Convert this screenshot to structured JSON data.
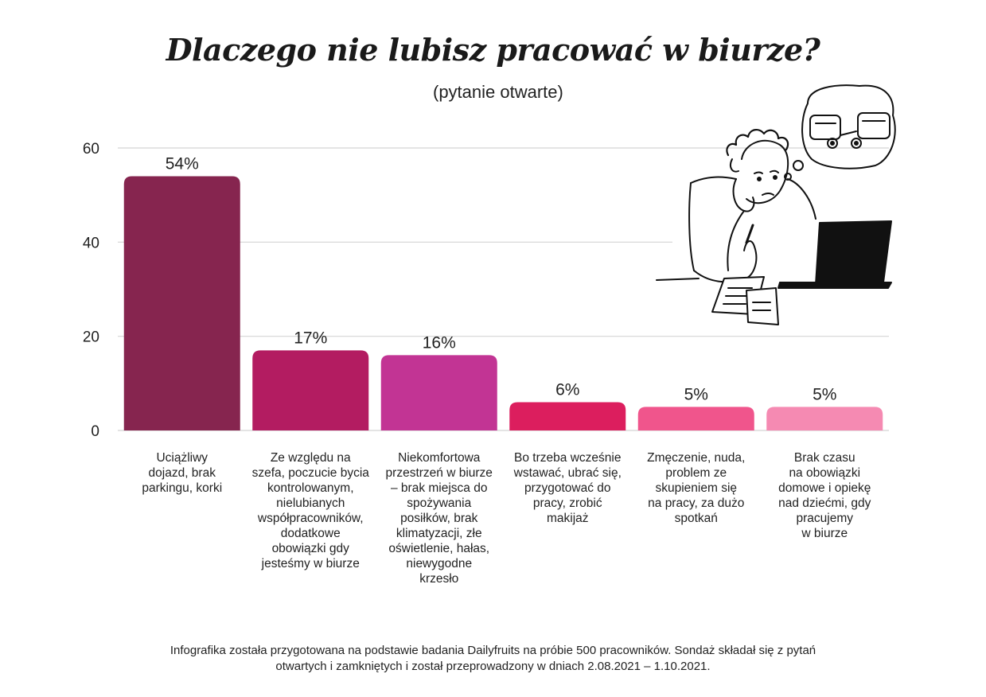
{
  "chart_data": {
    "type": "bar",
    "title": "Dlaczego nie lubisz pracować w biurze?",
    "subtitle": "(pytanie otwarte)",
    "categories": [
      "Uciążliwy dojazd, brak parkingu, korki",
      "Ze względu na szefa, poczucie bycia kontrolowanym, nielubianych współpracowników, dodatkowe obowiązki gdy jesteśmy w biurze",
      "Niekomfortowa przestrzeń w biurze – brak miejsca do spożywania posiłków, brak klimatyzacji, złe oświetlenie, hałas, niewygodne krzesło",
      "Bo trzeba wcześnie wstawać, ubrać się, przygotować do pracy, zrobić makijaż",
      "Zmęczenie, nuda, problem ze skupieniem się na pracy, za dużo spotkań",
      "Brak czasu na obowiązki domowe i opiekę nad dziećmi, gdy pracujemy w biurze"
    ],
    "category_lines": [
      [
        "Uciążliwy",
        "dojazd, brak",
        "parkingu, korki"
      ],
      [
        "Ze względu na",
        "szefa, poczucie bycia",
        "kontrolowanym,",
        "nielubianych",
        "współpracowników,",
        "dodatkowe",
        "obowiązki gdy",
        "jesteśmy w biurze"
      ],
      [
        "Niekomfortowa",
        "przestrzeń w biurze",
        "– brak miejsca do",
        "spożywania",
        "posiłków, brak",
        "klimatyzacji, złe",
        "oświetlenie, hałas,",
        "niewygodne",
        "krzesło"
      ],
      [
        "Bo trzeba wcześnie",
        "wstawać, ubrać się,",
        "przygotować do",
        "pracy, zrobić",
        "makijaż"
      ],
      [
        "Zmęczenie, nuda,",
        "problem ze",
        "skupieniem się",
        "na pracy, za dużo",
        "spotkań"
      ],
      [
        "Brak czasu",
        "na obowiązki",
        "domowe i opiekę",
        "nad dziećmi, gdy",
        "pracujemy",
        "w biurze"
      ]
    ],
    "values": [
      54,
      17,
      16,
      6,
      5,
      5
    ],
    "value_labels": [
      "54%",
      "17%",
      "16%",
      "6%",
      "5%",
      "5%"
    ],
    "colors": [
      "#86254f",
      "#b31c61",
      "#c23494",
      "#dc1e5e",
      "#f0558c",
      "#f58ab2"
    ],
    "yticks": [
      0,
      20,
      40,
      60
    ],
    "ylim": [
      0,
      60
    ],
    "grid": true,
    "legend": "none"
  },
  "footnote": {
    "line1": "Infografika została przygotowana na podstawie badania Dailyfruits na próbie 500 pracowników. Sondaż składał się z pytań",
    "line2": "otwartych i zamkniętych i został przeprowadzony w dniach 2.08.2021 – 1.10.2021."
  },
  "illustration": {
    "icon": "person-at-laptop-thinking-of-traffic-icon"
  }
}
